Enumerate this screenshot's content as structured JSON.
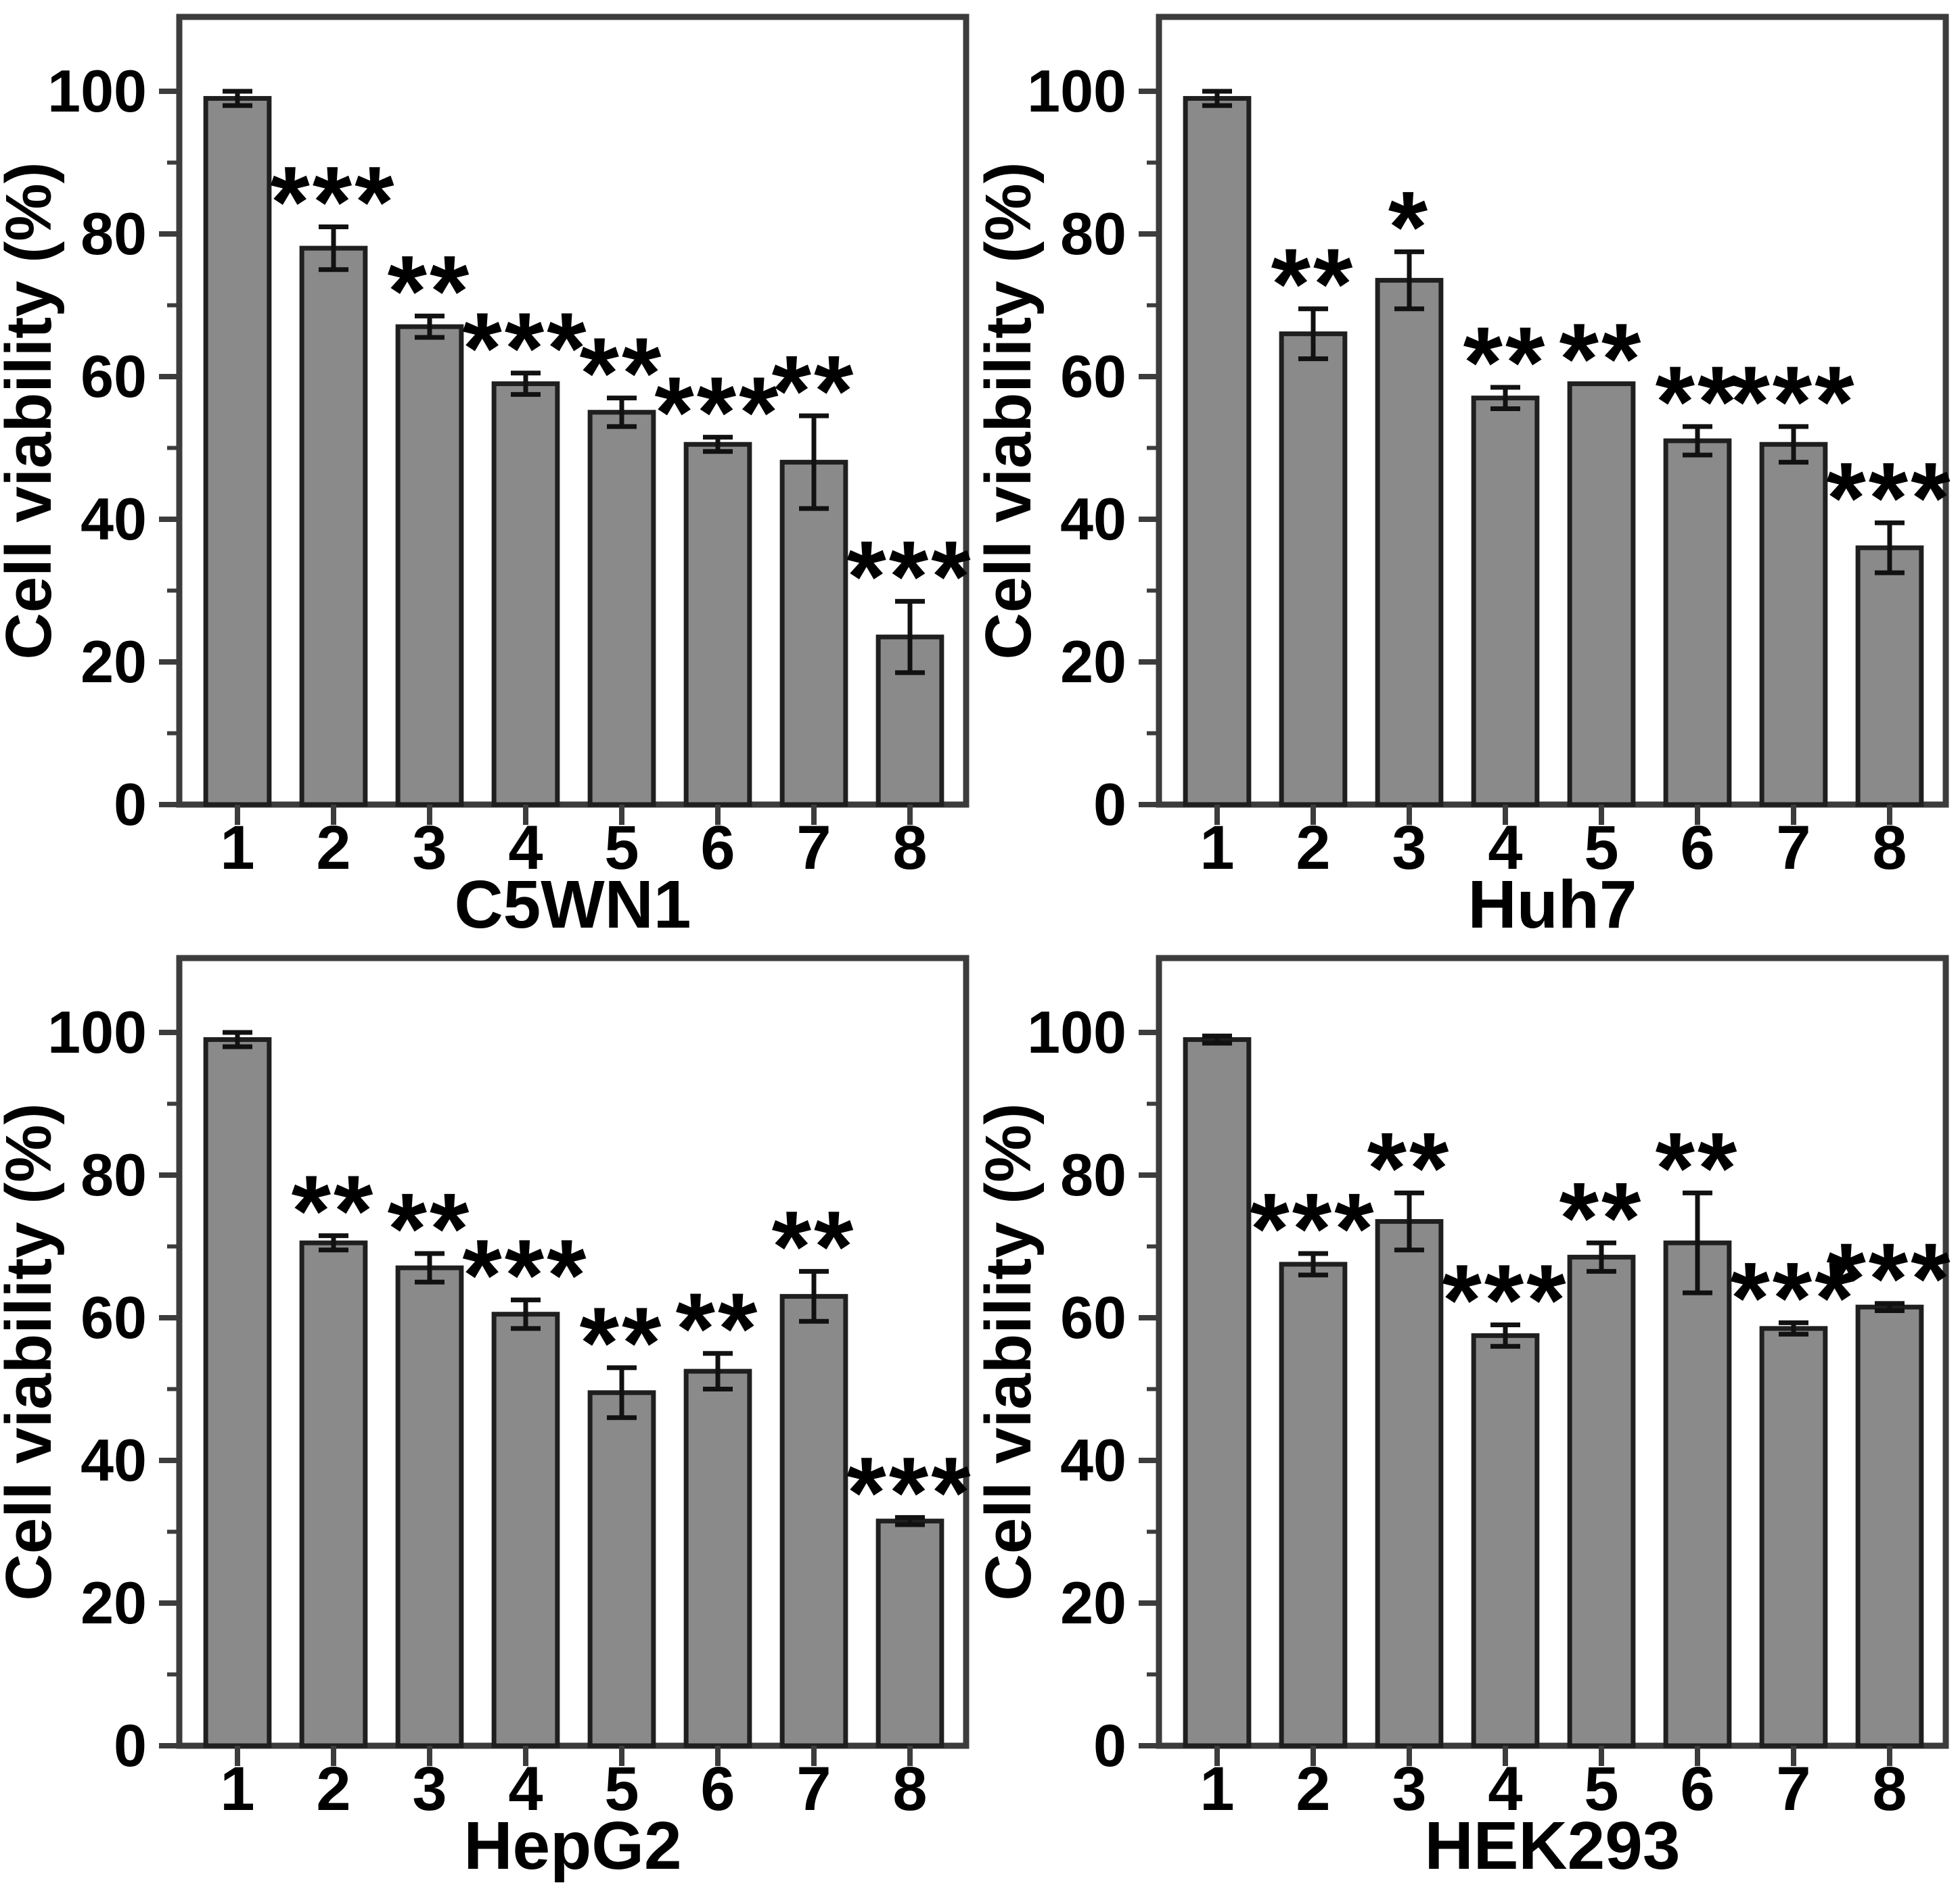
{
  "figure": {
    "background": "#ffffff",
    "panels_order": [
      "C5WN1",
      "Huh7",
      "HepG2",
      "HEK293"
    ]
  },
  "colors": {
    "bar_fill": "#8a8a8a",
    "bar_stroke": "#1f1f1f",
    "frame_stroke": "#3c3c3c",
    "error_bar": "#111111",
    "text": "#000000"
  },
  "axis": {
    "y_label": "Cell viability (%)",
    "y_ticks": [
      0,
      20,
      40,
      60,
      80,
      100
    ],
    "y_minor_ticks": [
      10,
      30,
      50,
      70,
      90
    ],
    "ylim": [
      0,
      112
    ],
    "x_ticks": [
      "1",
      "2",
      "3",
      "4",
      "5",
      "6",
      "7",
      "8"
    ]
  },
  "chart_data": [
    {
      "type": "bar",
      "title": "C5WN1",
      "ylabel": "Cell viability (%)",
      "ylim": [
        0,
        112
      ],
      "grid": false,
      "legend": "none",
      "categories": [
        "1",
        "2",
        "3",
        "4",
        "5",
        "6",
        "7",
        "8"
      ],
      "values": [
        99,
        78,
        67,
        59,
        55,
        50.5,
        48,
        23.5
      ],
      "errors": [
        1,
        3,
        1.5,
        1.5,
        2,
        1,
        6.5,
        5
      ],
      "significance": [
        "",
        "***",
        "**",
        "***",
        "**",
        "***",
        "**",
        "***"
      ]
    },
    {
      "type": "bar",
      "title": "Huh7",
      "ylabel": "Cell viability (%)",
      "ylim": [
        0,
        112
      ],
      "grid": false,
      "legend": "none",
      "categories": [
        "1",
        "2",
        "3",
        "4",
        "5",
        "6",
        "7",
        "8"
      ],
      "values": [
        99,
        66,
        73.5,
        57,
        59,
        51,
        50.5,
        36
      ],
      "errors": [
        1,
        3.5,
        4,
        1.5,
        0,
        2,
        2.5,
        3.5
      ],
      "significance": [
        "",
        "**",
        "*",
        "**",
        "**",
        "**",
        "***",
        "***"
      ]
    },
    {
      "type": "bar",
      "title": "HepG2",
      "ylabel": "Cell viability (%)",
      "ylim": [
        0,
        112
      ],
      "grid": false,
      "legend": "none",
      "categories": [
        "1",
        "2",
        "3",
        "4",
        "5",
        "6",
        "7",
        "8"
      ],
      "values": [
        99,
        70.5,
        67,
        60.5,
        49.5,
        52.5,
        63,
        31.5
      ],
      "errors": [
        1,
        1,
        2,
        2,
        3.5,
        2.5,
        3.5,
        0.5
      ],
      "significance": [
        "",
        "**",
        "**",
        "***",
        "**",
        "**",
        "**",
        "***"
      ]
    },
    {
      "type": "bar",
      "title": "HEK293",
      "ylabel": "Cell viability (%)",
      "ylim": [
        0,
        112
      ],
      "grid": false,
      "legend": "none",
      "categories": [
        "1",
        "2",
        "3",
        "4",
        "5",
        "6",
        "7",
        "8"
      ],
      "values": [
        99,
        67.5,
        73.5,
        57.5,
        68.5,
        70.5,
        58.5,
        61.5
      ],
      "errors": [
        0.5,
        1.5,
        4,
        1.5,
        2,
        7,
        0.8,
        0.5
      ],
      "significance": [
        "",
        "***",
        "**",
        "***",
        "**",
        "**",
        "***",
        "***"
      ]
    }
  ]
}
